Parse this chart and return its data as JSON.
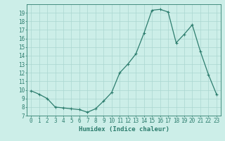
{
  "xlabel": "Humidex (Indice chaleur)",
  "ylabel": "",
  "x": [
    0,
    1,
    2,
    3,
    4,
    5,
    6,
    7,
    8,
    9,
    10,
    11,
    12,
    13,
    14,
    15,
    16,
    17,
    18,
    19,
    20,
    21,
    22,
    23
  ],
  "y": [
    9.9,
    9.5,
    9.0,
    8.0,
    7.9,
    7.8,
    7.7,
    7.4,
    7.8,
    8.7,
    9.7,
    12.0,
    13.0,
    14.2,
    16.6,
    19.3,
    19.4,
    19.1,
    15.5,
    16.5,
    17.6,
    14.5,
    11.8,
    9.5
  ],
  "line_color": "#2d7d6e",
  "marker": "+",
  "marker_size": 3,
  "marker_lw": 0.8,
  "line_width": 0.9,
  "bg_color": "#cceee8",
  "grid_color": "#aad6d0",
  "tick_color": "#2d7d6e",
  "label_color": "#2d7d6e",
  "ylim": [
    7,
    20
  ],
  "xlim": [
    -0.5,
    23.5
  ],
  "yticks": [
    7,
    8,
    9,
    10,
    11,
    12,
    13,
    14,
    15,
    16,
    17,
    18,
    19
  ],
  "xticks": [
    0,
    1,
    2,
    3,
    4,
    5,
    6,
    7,
    8,
    9,
    10,
    11,
    12,
    13,
    14,
    15,
    16,
    17,
    18,
    19,
    20,
    21,
    22,
    23
  ],
  "xlabel_fontsize": 6.5,
  "tick_fontsize": 5.5
}
